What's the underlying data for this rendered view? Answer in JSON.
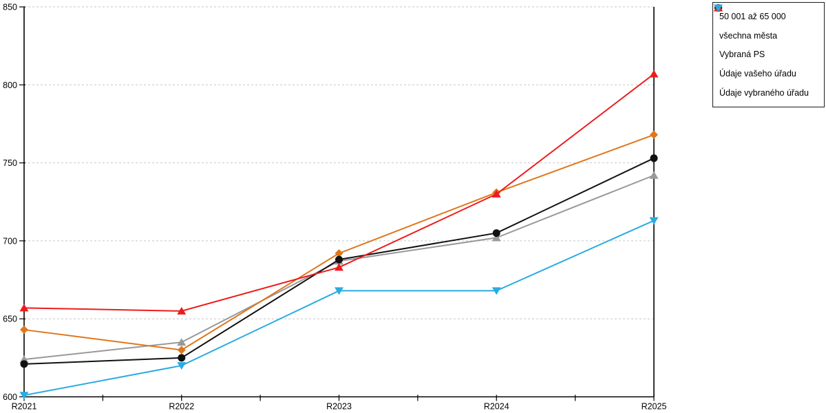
{
  "chart_data": {
    "type": "line",
    "title": "",
    "xlabel": "",
    "ylabel": "",
    "categories": [
      "R2021",
      "R2022",
      "R2023",
      "R2024",
      "R2025"
    ],
    "ylim": [
      600,
      850
    ],
    "y_ticks": [
      600,
      650,
      700,
      750,
      800,
      850
    ],
    "grid": "horizontal-dashed",
    "legend_position": "top-right-outside",
    "series": [
      {
        "name": "50 001 až 65 000",
        "color": "#e0761a",
        "marker": "diamond",
        "values": [
          643,
          630,
          692,
          731,
          768
        ]
      },
      {
        "name": "všechna města",
        "color": "#111111",
        "marker": "circle",
        "values": [
          621,
          625,
          688,
          705,
          753
        ]
      },
      {
        "name": "Vybraná PS",
        "color": "#999999",
        "marker": "triangle-up",
        "values": [
          624,
          635,
          687,
          702,
          742
        ]
      },
      {
        "name": "Údaje vašeho úřadu",
        "color": "#ed1c1c",
        "marker": "triangle-up",
        "values": [
          657,
          655,
          683,
          730,
          807
        ]
      },
      {
        "name": "Údaje vybraného úřadu",
        "color": "#29abe2",
        "marker": "triangle-down",
        "values": [
          601,
          620,
          668,
          668,
          713
        ]
      }
    ],
    "colors": {
      "axis": "#000000",
      "gridline": "#c6c6c6",
      "background": "#ffffff"
    }
  }
}
